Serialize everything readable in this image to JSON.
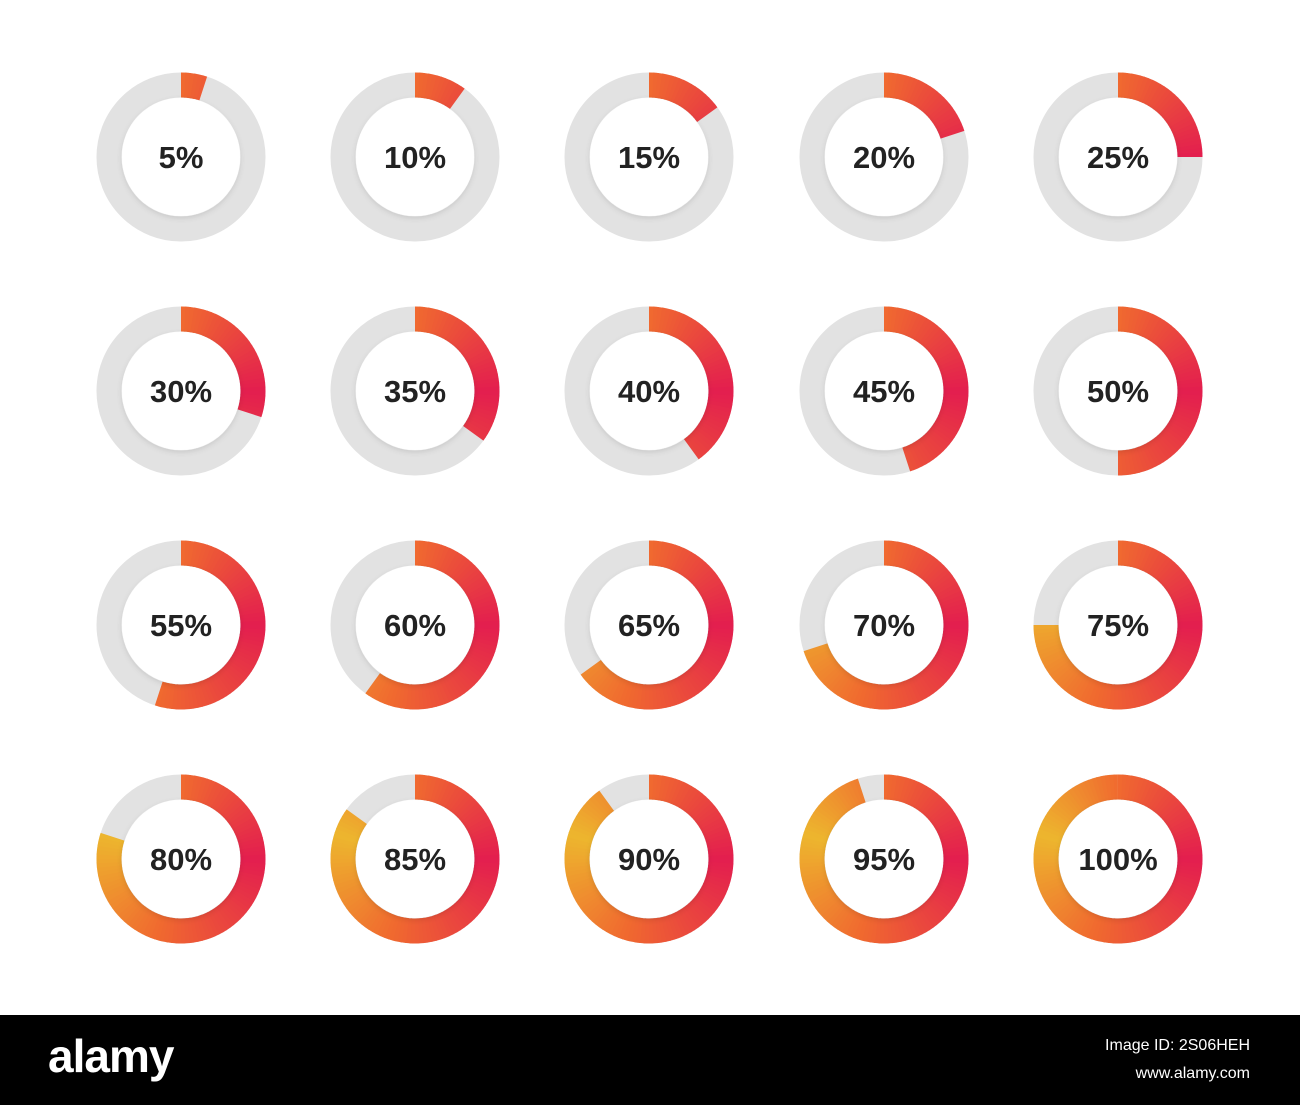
{
  "chart_data": {
    "type": "donut",
    "unit": "%",
    "values": [
      5,
      10,
      15,
      20,
      25,
      30,
      35,
      40,
      45,
      50,
      55,
      60,
      65,
      70,
      75,
      80,
      85,
      90,
      95,
      100
    ],
    "labels": [
      "5%",
      "10%",
      "15%",
      "20%",
      "25%",
      "30%",
      "35%",
      "40%",
      "45%",
      "50%",
      "55%",
      "60%",
      "65%",
      "70%",
      "75%",
      "80%",
      "85%",
      "90%",
      "95%",
      "100%"
    ],
    "max": 100
  },
  "colors": {
    "track": "#e2e2e2",
    "gradient_start": "#e31e4f",
    "gradient_mid": "#f06a2f",
    "gradient_end": "#edb62e",
    "label": "#222222",
    "background": "#ffffff"
  },
  "footer": {
    "brand": "alamy",
    "image_id": "Image ID: 2S06HEH",
    "site": "www.alamy.com"
  }
}
